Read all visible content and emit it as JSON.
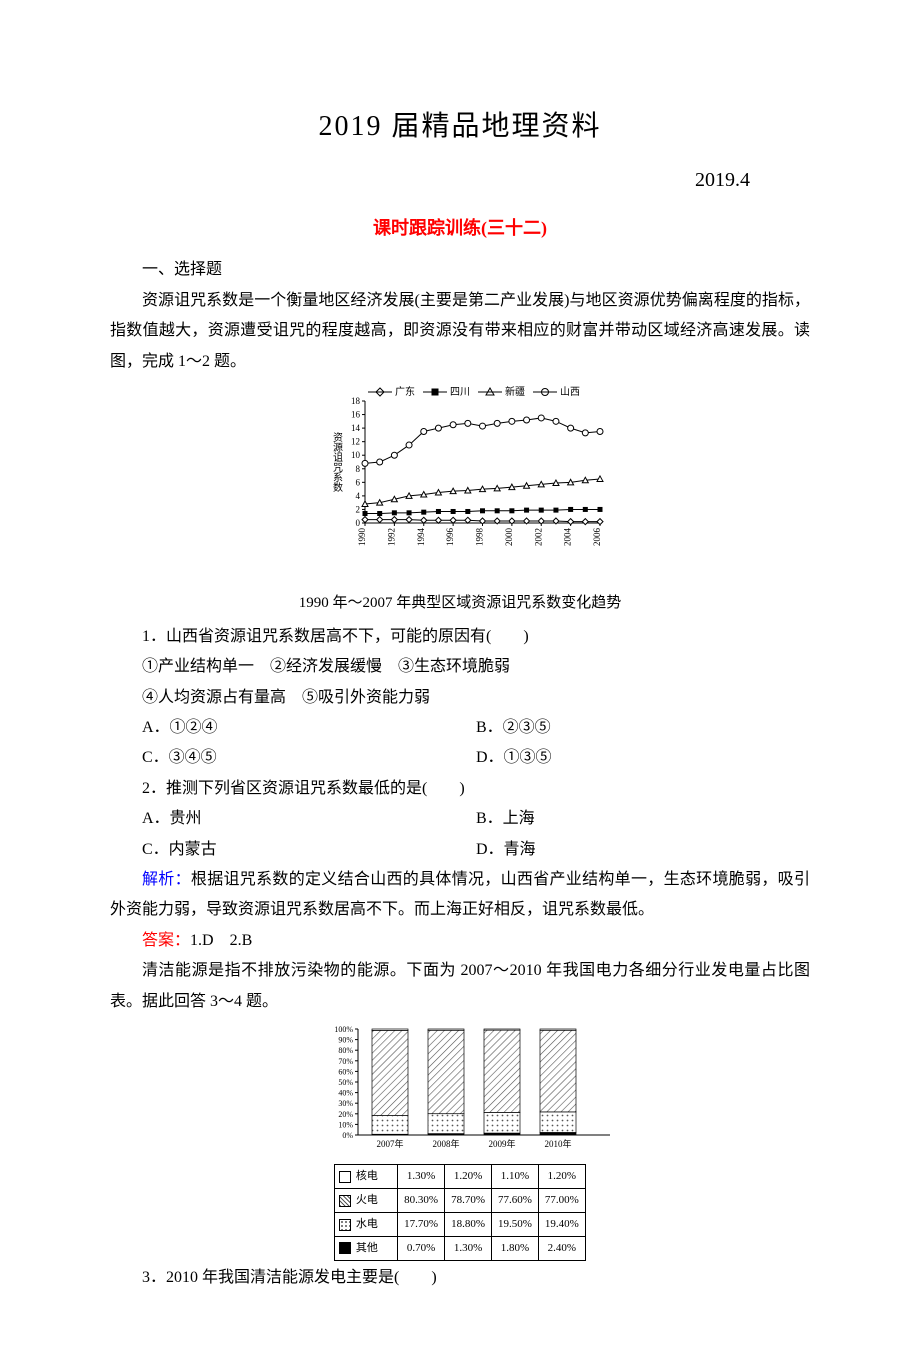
{
  "title": "2019 届精品地理资料",
  "date": "2019.4",
  "subtitle": "课时跟踪训练(三十二)",
  "section_heading": "一、选择题",
  "passage1_intro": "资源诅咒系数是一个衡量地区经济发展(主要是第二产业发展)与地区资源优势偏离程度的指标，指数值越大，资源遭受诅咒的程度越高，即资源没有带来相应的财富并带动区域经济高速发展。读图，完成 1～2 题。",
  "fig1": {
    "type": "line",
    "caption": "1990 年～2007 年典型区域资源诅咒系数变化趋势",
    "legend": [
      "广东",
      "四川",
      "新疆",
      "山西"
    ],
    "legend_markers": [
      "diamond-open",
      "square-filled",
      "triangle-open",
      "circle-open"
    ],
    "x_axis_label": "",
    "y_axis_label": "资源诅咒系数",
    "x_years": [
      1990,
      1991,
      1992,
      1993,
      1994,
      1995,
      1996,
      1997,
      1998,
      1999,
      2000,
      2001,
      2002,
      2003,
      2004,
      2005,
      2006
    ],
    "x_tick_labels": [
      "1990",
      "1992",
      "1994",
      "1996",
      "1998",
      "2000",
      "2002",
      "2004",
      "2006"
    ],
    "y_ticks": [
      0,
      2,
      4,
      6,
      8,
      10,
      12,
      14,
      16,
      18
    ],
    "ylim": [
      0,
      18
    ],
    "line_color": "#000000",
    "grid_color": "#cccccc",
    "series": {
      "guangdong": [
        0.5,
        0.5,
        0.5,
        0.5,
        0.4,
        0.4,
        0.4,
        0.4,
        0.3,
        0.3,
        0.3,
        0.3,
        0.3,
        0.3,
        0.2,
        0.2,
        0.2
      ],
      "sichuan": [
        1.4,
        1.4,
        1.5,
        1.5,
        1.6,
        1.7,
        1.7,
        1.7,
        1.8,
        1.8,
        1.8,
        1.9,
        1.9,
        1.9,
        2.0,
        2.0,
        2.0
      ],
      "xinjiang": [
        2.8,
        3.0,
        3.5,
        4.0,
        4.2,
        4.5,
        4.7,
        4.8,
        5.0,
        5.1,
        5.3,
        5.5,
        5.7,
        5.9,
        6.0,
        6.3,
        6.5
      ],
      "shanxi": [
        8.8,
        9.0,
        10.0,
        11.5,
        13.5,
        14.0,
        14.5,
        14.7,
        14.3,
        14.7,
        15.0,
        15.2,
        15.5,
        15.0,
        14.0,
        13.3,
        13.5
      ]
    }
  },
  "q1": {
    "stem": "1．山西省资源诅咒系数居高不下，可能的原因有(　　)",
    "roman_options": "①产业结构单一　②经济发展缓慢　③生态环境脆弱",
    "roman_options_line2": "④人均资源占有量高　⑤吸引外资能力弱",
    "A": "A．①②④",
    "B": "B．②③⑤",
    "C": "C．③④⑤",
    "D": "D．①③⑤"
  },
  "q2": {
    "stem": "2．推测下列省区资源诅咒系数最低的是(　　)",
    "A": "A．贵州",
    "B": "B．上海",
    "C": "C．内蒙古",
    "D": "D．青海"
  },
  "analysis_label": "解析：",
  "analysis_text": "根据诅咒系数的定义结合山西的具体情况，山西省产业结构单一，生态环境脆弱，吸引外资能力弱，导致资源诅咒系数居高不下。而上海正好相反，诅咒系数最低。",
  "answer_label": "答案：",
  "answer_text": "1.D　2.B",
  "passage2_intro": "清洁能源是指不排放污染物的能源。下面为 2007～2010 年我国电力各细分行业发电量占比图表。据此回答 3～4 题。",
  "fig2": {
    "type": "stacked-bar-table",
    "y_ticks": [
      "100%",
      "90%",
      "80%",
      "70%",
      "60%",
      "50%",
      "40%",
      "30%",
      "20%",
      "10%",
      "0%"
    ],
    "columns": [
      "2007年",
      "2008年",
      "2009年",
      "2010年"
    ],
    "row_labels": [
      "核电",
      "火电",
      "水电",
      "其他"
    ],
    "row_symbols": [
      "white",
      "hatch",
      "dots",
      "solid"
    ],
    "rows": [
      [
        "1.30%",
        "1.20%",
        "1.10%",
        "1.20%"
      ],
      [
        "80.30%",
        "78.70%",
        "77.60%",
        "77.00%"
      ],
      [
        "17.70%",
        "18.80%",
        "19.50%",
        "19.40%"
      ],
      [
        "0.70%",
        "1.30%",
        "1.80%",
        "2.40%"
      ]
    ],
    "bar_numeric": {
      "nuclear": [
        1.3,
        1.2,
        1.1,
        1.2
      ],
      "thermal": [
        80.3,
        78.7,
        77.6,
        77.0
      ],
      "hydro": [
        17.7,
        18.8,
        19.5,
        19.4
      ],
      "other": [
        0.7,
        1.3,
        1.8,
        2.4
      ]
    },
    "border_color": "#000000",
    "bg_color": "#ffffff"
  },
  "q3": {
    "stem": "3．2010 年我国清洁能源发电主要是(　　)"
  }
}
